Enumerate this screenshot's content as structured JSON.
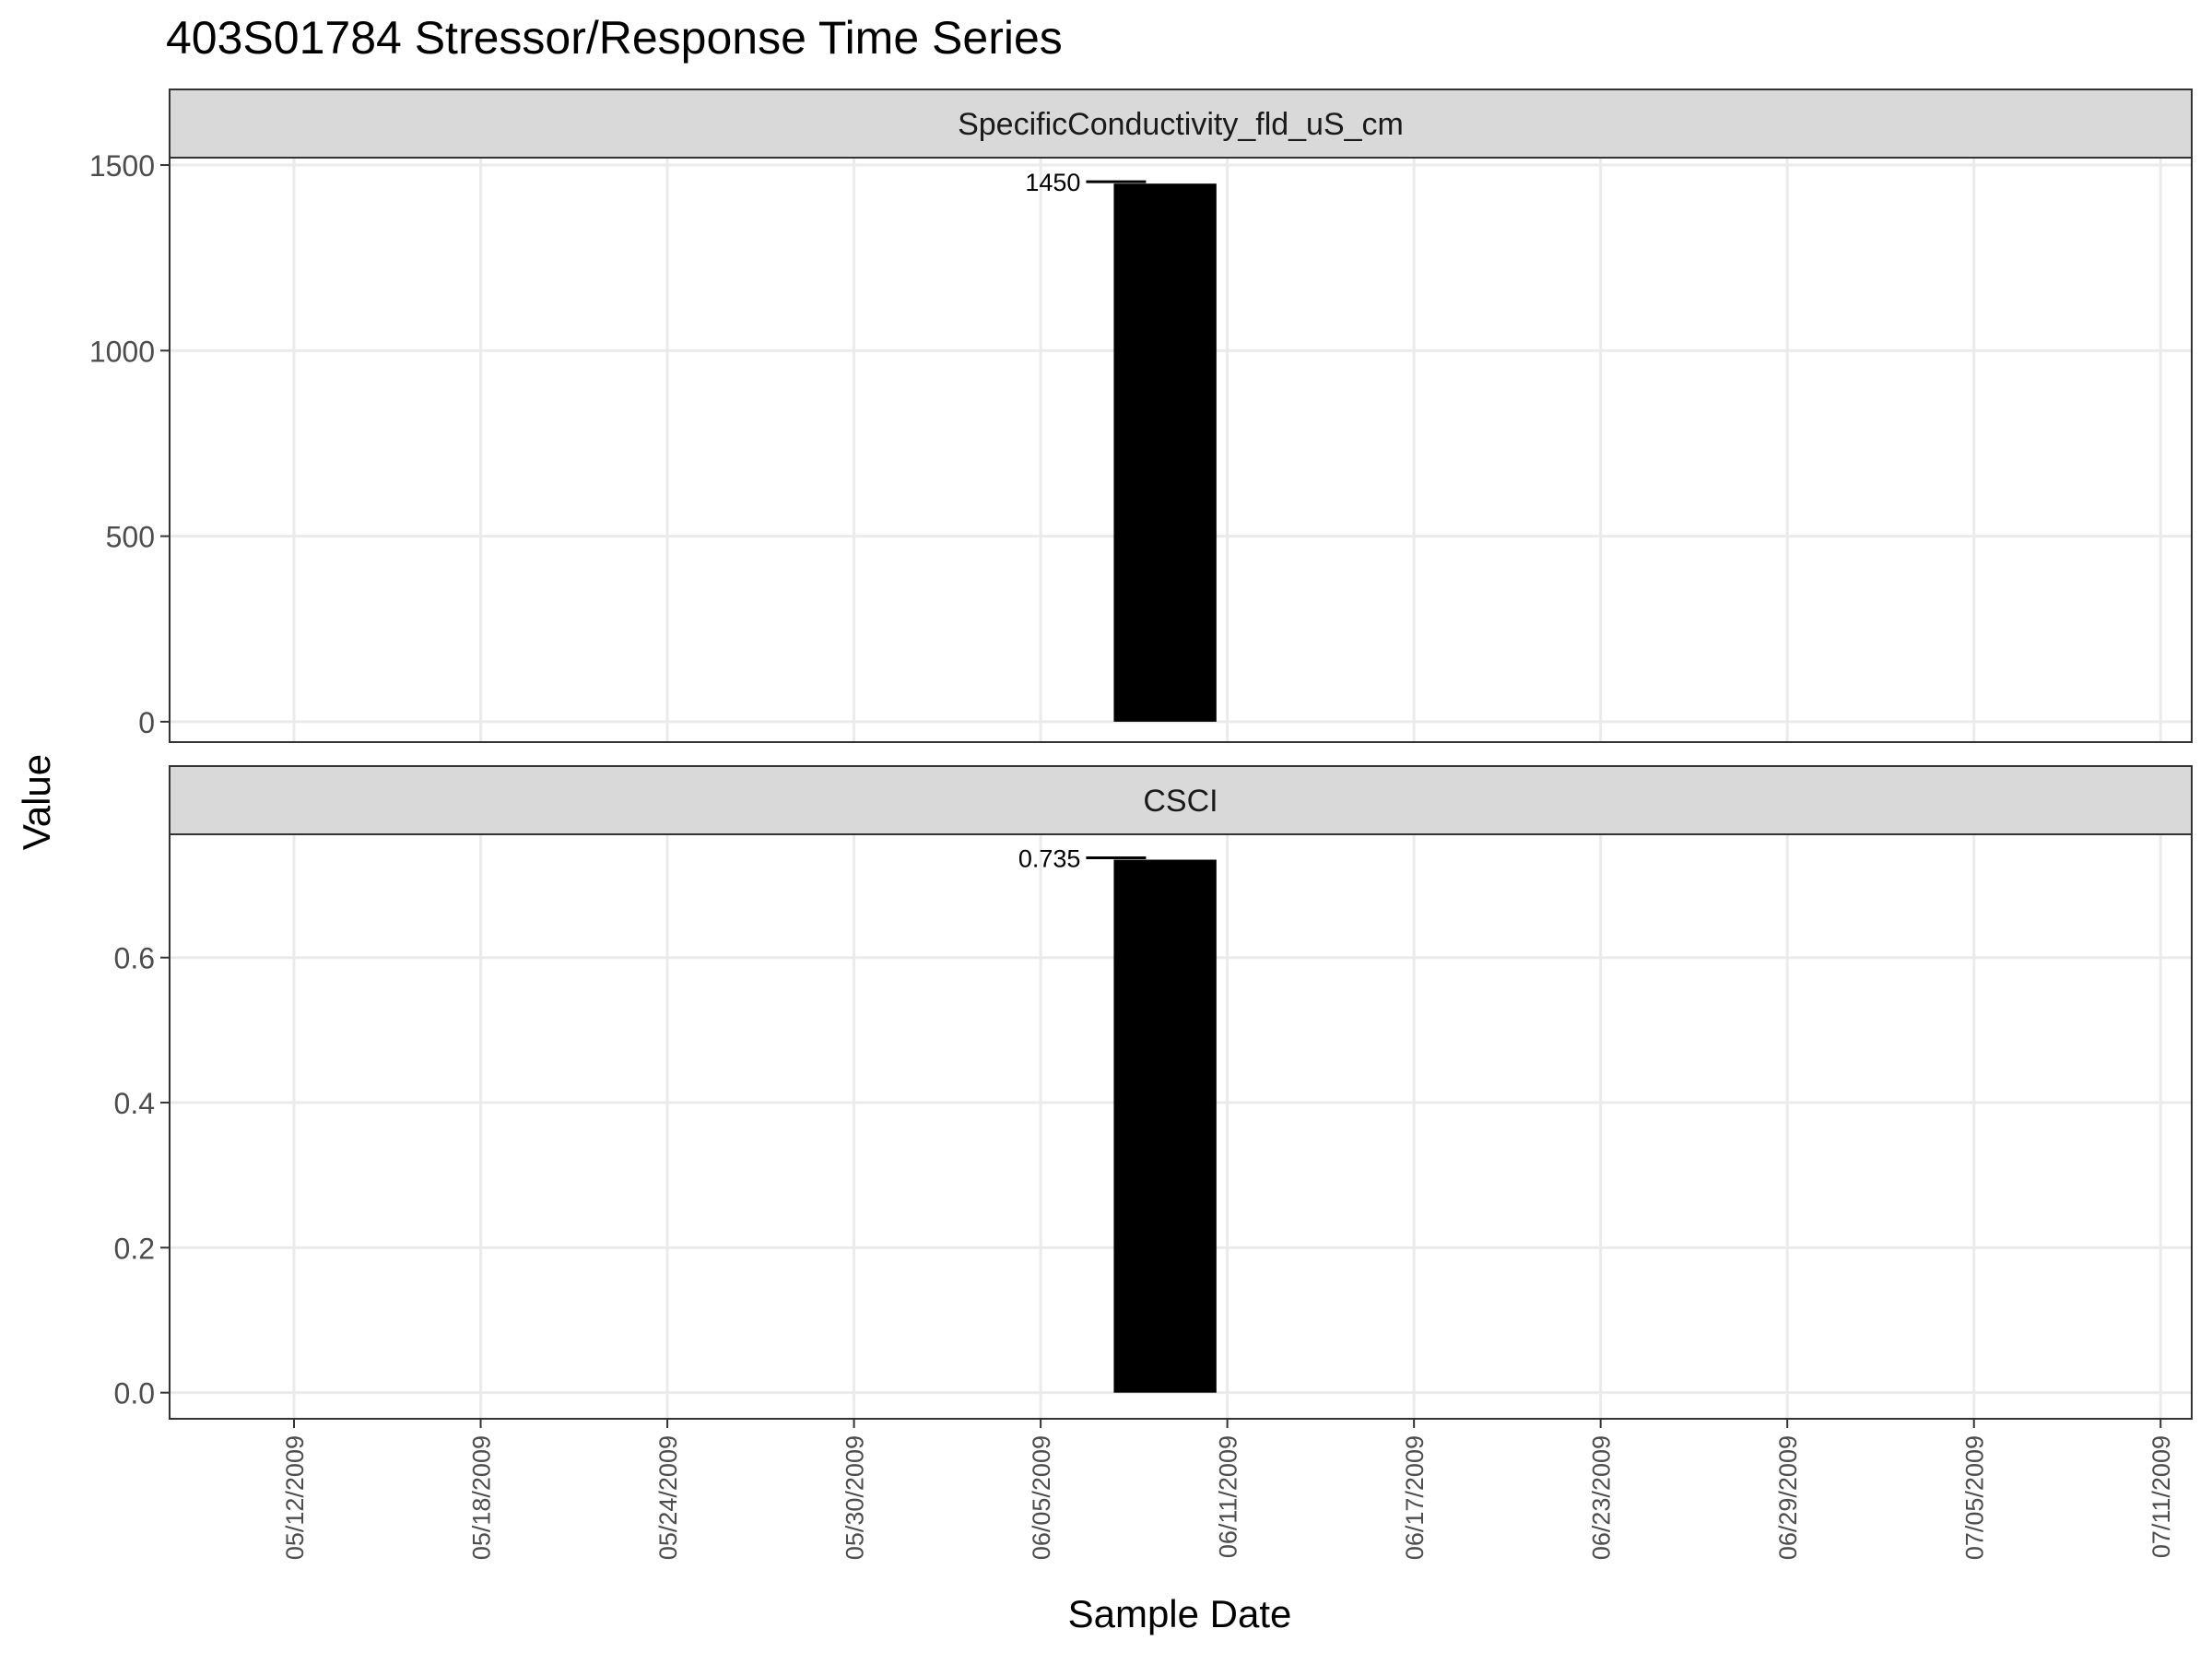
{
  "chart_data": {
    "type": "bar",
    "title": "403S01784 Stressor/Response Time Series",
    "xlabel": "Sample Date",
    "ylabel": "Value",
    "grid": true,
    "legend": "none",
    "xlim": [
      "2009-05-08",
      "2009-07-12"
    ],
    "x_ticks": [
      "05/12/2009",
      "05/18/2009",
      "05/24/2009",
      "05/30/2009",
      "06/05/2009",
      "06/11/2009",
      "06/17/2009",
      "06/23/2009",
      "06/29/2009",
      "07/05/2009",
      "07/11/2009"
    ],
    "bar_color": "#000000",
    "panels": [
      {
        "strip": "SpecificConductivity_fld_uS_cm",
        "ylim": [
          -55,
          1520
        ],
        "y_ticks": [
          0,
          500,
          1000,
          1500
        ],
        "y_tick_labels": [
          "0",
          "500",
          "1000",
          "1500"
        ],
        "bars": [
          {
            "x": "2009-06-09",
            "value": 1450,
            "label": "1450"
          }
        ]
      },
      {
        "strip": "CSCI",
        "ylim": [
          -0.036,
          0.77
        ],
        "y_ticks": [
          0.0,
          0.2,
          0.4,
          0.6
        ],
        "y_tick_labels": [
          "0.0",
          "0.2",
          "0.4",
          "0.6"
        ],
        "bars": [
          {
            "x": "2009-06-09",
            "value": 0.735,
            "label": "0.735"
          }
        ]
      }
    ]
  }
}
